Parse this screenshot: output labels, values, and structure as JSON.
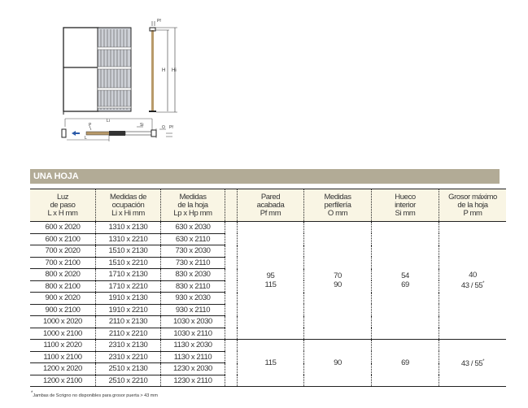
{
  "diagram": {
    "labels": {
      "pf_top": "Pf",
      "h": "H",
      "hi": "Hi",
      "li": "Li",
      "p": "P",
      "si": "Si",
      "o": "O",
      "pf_bottom": "Pf",
      "l": "L"
    }
  },
  "section_title": "UNA HOJA",
  "table": {
    "headers": [
      [
        "Luz",
        "de paso",
        "L x H mm"
      ],
      [
        "Medidas de",
        "ocupación",
        "Li x Hi mm"
      ],
      [
        "Medidas",
        "de la hoja",
        "Lp x Hp mm"
      ],
      [
        "Pared",
        "acabada",
        "Pf mm"
      ],
      [
        "Medidas",
        "perfilería",
        "O mm"
      ],
      [
        "Hueco",
        "interior",
        "Si mm"
      ],
      [
        "Grosor máximo",
        "de la hoja",
        "P mm"
      ]
    ],
    "rows": [
      [
        "600 x 2020",
        "1310 x 2130",
        "630 x 2030"
      ],
      [
        "600 x 2100",
        "1310 x 2210",
        "630 x 2110"
      ],
      [
        "700 x 2020",
        "1510 x 2130",
        "730 x 2030"
      ],
      [
        "700 x 2100",
        "1510 x 2210",
        "730 x 2110"
      ],
      [
        "800 x 2020",
        "1710 x 2130",
        "830 x 2030"
      ],
      [
        "800 x 2100",
        "1710 x 2210",
        "830 x 2110"
      ],
      [
        "900 x 2020",
        "1910 x 2130",
        "930 x 2030"
      ],
      [
        "900 x 2100",
        "1910 x 2210",
        "930 x 2110"
      ],
      [
        "1000 x 2020",
        "2110 x 2130",
        "1030 x 2030"
      ],
      [
        "1000 x 2100",
        "2110 x 2210",
        "1030 x 2110"
      ],
      [
        "1100 x 2020",
        "2310 x 2130",
        "1130 x 2030"
      ],
      [
        "1100 x 2100",
        "2310 x 2210",
        "1130 x 2110"
      ],
      [
        "1200 x 2020",
        "2510 x 2130",
        "1230 x 2030"
      ],
      [
        "1200 x 2100",
        "2510 x 2210",
        "1230 x 2110"
      ]
    ],
    "group1": {
      "pf": [
        "95",
        "115"
      ],
      "o": [
        "70",
        "90"
      ],
      "si": [
        "54",
        "69"
      ],
      "p": [
        "40",
        "43 / 55"
      ]
    },
    "group2": {
      "pf": "115",
      "o": "90",
      "si": "69",
      "p": "43 / 55"
    },
    "asterisk": "*"
  },
  "footnote": "Jambas de Scrigno no disponibles para grosor puerta > 43 mm",
  "colors": {
    "banner": "#b2ab96",
    "header_bg": "#f9f5e4",
    "wood": "#b89a6a",
    "arrow": "#2a5aa8"
  }
}
